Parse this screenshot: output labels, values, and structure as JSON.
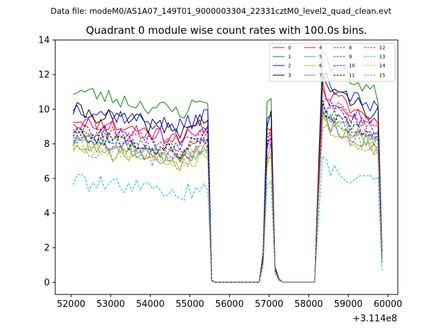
{
  "chart_data": {
    "type": "line",
    "subtitle": "Data file: modeM0/AS1A07_149T01_9000003304_22331cztM0_level2_quad_clean.evt",
    "title": "Quadrant 0 module wise count rates with 100.0s bins.",
    "xlabel": "",
    "ylabel": "",
    "x_offset_label": "+3.114e8",
    "xlim": [
      51600,
      60250
    ],
    "ylim": [
      -0.7,
      14
    ],
    "xticks": [
      52000,
      53000,
      54000,
      55000,
      56000,
      57000,
      58000,
      59000,
      60000
    ],
    "xtick_labels": [
      "52000",
      "53000",
      "54000",
      "55000",
      "56000",
      "57000",
      "58000",
      "59000",
      "60000"
    ],
    "yticks": [
      0,
      2,
      4,
      6,
      8,
      10,
      12,
      14
    ],
    "ytick_labels": [
      "0",
      "2",
      "4",
      "6",
      "8",
      "10",
      "12",
      "14"
    ],
    "legend_position": "upper-right",
    "x_segments": [
      {
        "start": 52050,
        "end": 55450
      },
      {
        "start": 55550,
        "end": 56750
      },
      {
        "start": 56850,
        "end": 57150
      },
      {
        "start": 57250,
        "end": 58150
      },
      {
        "start": 58250,
        "end": 59750
      },
      {
        "start": 59850,
        "end": 59850
      }
    ],
    "series": [
      {
        "name": "0",
        "color": "#ff0000",
        "dash": "solid",
        "level": 8.8,
        "seed": 11
      },
      {
        "name": "1",
        "color": "#008000",
        "dash": "solid",
        "level": 10.3,
        "seed": 23
      },
      {
        "name": "2",
        "color": "#0000ff",
        "dash": "solid",
        "level": 9.4,
        "seed": 37
      },
      {
        "name": "3",
        "color": "#000000",
        "dash": "solid",
        "level": 9.2,
        "seed": 41
      },
      {
        "name": "4",
        "color": "#bf00bf",
        "dash": "solid",
        "level": 8.7,
        "seed": 53
      },
      {
        "name": "5",
        "color": "#20b2aa",
        "dash": "solid",
        "level": 7.6,
        "seed": 61
      },
      {
        "name": "6",
        "color": "#bfbf00",
        "dash": "solid",
        "level": 7.2,
        "seed": 71
      },
      {
        "name": "7",
        "color": "#808080",
        "dash": "solid",
        "level": 7.5,
        "seed": 83
      },
      {
        "name": "8",
        "color": "#ff0000",
        "dash": "dashed",
        "level": 8.4,
        "seed": 97
      },
      {
        "name": "9",
        "color": "#008000",
        "dash": "dashed",
        "level": 7.9,
        "seed": 101
      },
      {
        "name": "10",
        "color": "#0000ff",
        "dash": "dashed",
        "level": 8.2,
        "seed": 113
      },
      {
        "name": "11",
        "color": "#000000",
        "dash": "dashed",
        "level": 8.0,
        "seed": 127
      },
      {
        "name": "12",
        "color": "#bf00bf",
        "dash": "dashed",
        "level": 7.8,
        "seed": 131
      },
      {
        "name": "13",
        "color": "#00bfbf",
        "dash": "dashed",
        "level": 5.4,
        "seed": 139
      },
      {
        "name": "14",
        "color": "#bfbf00",
        "dash": "dashed",
        "level": 7.4,
        "seed": 149
      },
      {
        "name": "15",
        "color": "#808080",
        "dash": "dashed",
        "level": 7.3,
        "seed": 157
      }
    ]
  }
}
